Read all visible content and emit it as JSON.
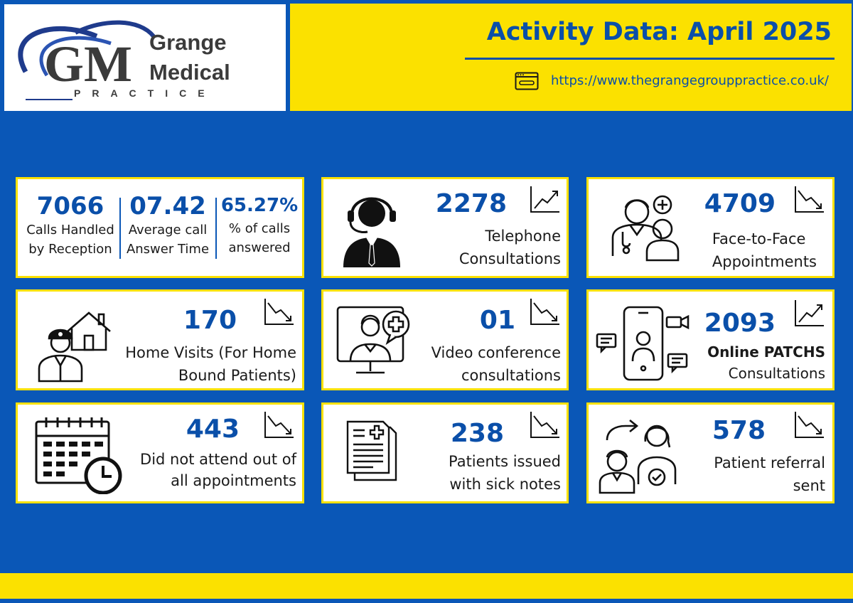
{
  "logo": {
    "line1": "Grange",
    "line2": "Medical",
    "line3": "PRACTICE",
    "monogram": "GM",
    "colors": {
      "dark": "#3b3b3b",
      "blue": "#1f3b8c"
    }
  },
  "header": {
    "title": "Activity Data: April 2025",
    "url": "https://www.thegrangegrouppractice.co.uk/",
    "url_icon": "browser-window-icon"
  },
  "colors": {
    "background": "#0a57b7",
    "accent": "#fbe100",
    "value": "#0a4fa9"
  },
  "calls": {
    "handled": {
      "value": "7066",
      "label1": "Calls Handled",
      "label2": "by Reception"
    },
    "answer_time": {
      "value": "07.42",
      "label1": "Average call",
      "label2": "Answer Time"
    },
    "answered": {
      "value": "65.27%",
      "label1": "% of calls",
      "label2": "answered"
    }
  },
  "cards": {
    "telephone": {
      "value": "2278",
      "label1": "Telephone",
      "label2": "Consultations",
      "trend": "up",
      "icon": "call-centre-agent-icon"
    },
    "f2f": {
      "value": "4709",
      "label1": "Face-to-Face",
      "label2": "Appointments",
      "trend": "down",
      "icon": "doctor-patient-icon"
    },
    "home": {
      "value": "170",
      "label1": "Home Visits (For Home",
      "label2": "Bound Patients)",
      "trend": "down",
      "icon": "home-visit-icon"
    },
    "video": {
      "value": "01",
      "label1": "Video conference",
      "label2": "consultations",
      "trend": "down",
      "icon": "video-consultation-icon"
    },
    "patchs": {
      "value": "2093",
      "label1": "Online PATCHS",
      "label2": "Consultations",
      "trend": "up",
      "icon": "phone-video-chat-icon"
    },
    "dna": {
      "value": "443",
      "label1": "Did not attend out of",
      "label2": "all appointments",
      "trend": "down",
      "icon": "calendar-clock-icon"
    },
    "sick": {
      "value": "238",
      "label1": "Patients issued",
      "label2": "with sick notes",
      "trend": "down",
      "icon": "sick-note-document-icon"
    },
    "referral": {
      "value": "578",
      "label1": "Patient referral",
      "label2": "sent",
      "trend": "down",
      "icon": "patient-referral-icon"
    }
  }
}
